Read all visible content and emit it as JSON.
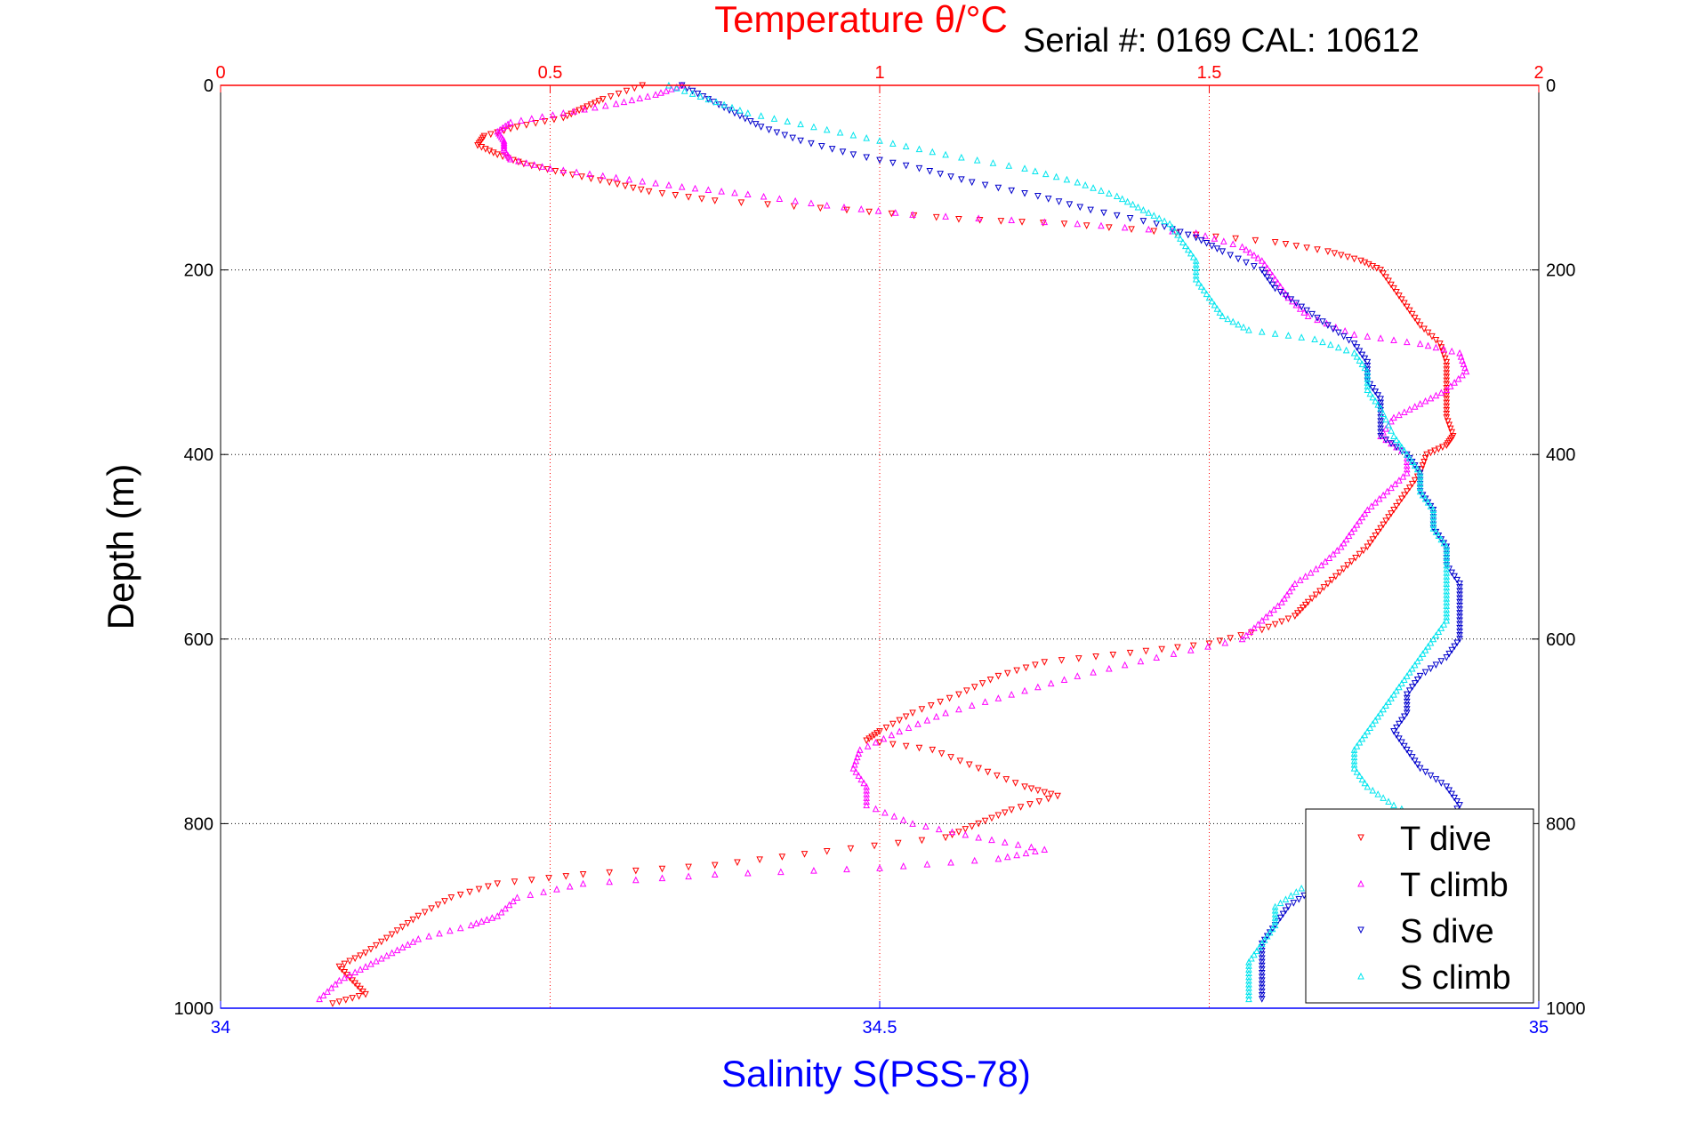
{
  "chart_data": {
    "type": "scatter",
    "title_top": "Temperature θ/°C",
    "title_right": "Serial #: 0169 CAL: 10612",
    "ylabel": "Depth (m)",
    "xlabel_bottom": "Salinity S(PSS-78)",
    "y_axis": {
      "range": [
        0,
        1000
      ],
      "reversed": true,
      "ticks": [
        0,
        200,
        400,
        600,
        800,
        1000
      ],
      "tick_labels": [
        "0",
        "200",
        "400",
        "600",
        "800",
        "1000"
      ]
    },
    "x_temp_axis": {
      "range": [
        0,
        2
      ],
      "ticks": [
        0,
        0.5,
        1,
        1.5,
        2
      ],
      "tick_labels": [
        "0",
        "0.5",
        "1",
        "1.5",
        "2"
      ],
      "position": "top"
    },
    "x_sal_axis": {
      "range": [
        34,
        35
      ],
      "ticks": [
        34,
        34.5,
        35
      ],
      "tick_labels": [
        "34",
        "34.5",
        "35"
      ],
      "position": "bottom"
    },
    "grid": true,
    "legend_position": "bottom-right",
    "series": [
      {
        "name": "T dive",
        "axis": "temperature",
        "marker": "triangle-down",
        "points": [
          [
            0.64,
            0
          ],
          [
            0.58,
            15
          ],
          [
            0.55,
            25
          ],
          [
            0.52,
            35
          ],
          [
            0.45,
            45
          ],
          [
            0.4,
            55
          ],
          [
            0.39,
            65
          ],
          [
            0.42,
            75
          ],
          [
            0.46,
            85
          ],
          [
            0.52,
            95
          ],
          [
            0.59,
            105
          ],
          [
            0.65,
            115
          ],
          [
            0.75,
            125
          ],
          [
            0.95,
            135
          ],
          [
            1.12,
            145
          ],
          [
            1.28,
            150
          ],
          [
            1.45,
            160
          ],
          [
            1.6,
            170
          ],
          [
            1.68,
            180
          ],
          [
            1.73,
            190
          ],
          [
            1.76,
            200
          ],
          [
            1.78,
            220
          ],
          [
            1.8,
            240
          ],
          [
            1.82,
            260
          ],
          [
            1.85,
            280
          ],
          [
            1.86,
            300
          ],
          [
            1.86,
            320
          ],
          [
            1.86,
            340
          ],
          [
            1.86,
            360
          ],
          [
            1.87,
            380
          ],
          [
            1.86,
            390
          ],
          [
            1.83,
            400
          ],
          [
            1.82,
            420
          ],
          [
            1.8,
            440
          ],
          [
            1.78,
            460
          ],
          [
            1.76,
            480
          ],
          [
            1.74,
            500
          ],
          [
            1.71,
            520
          ],
          [
            1.68,
            540
          ],
          [
            1.65,
            560
          ],
          [
            1.63,
            575
          ],
          [
            1.58,
            590
          ],
          [
            1.5,
            605
          ],
          [
            1.38,
            615
          ],
          [
            1.25,
            625
          ],
          [
            1.18,
            640
          ],
          [
            1.12,
            660
          ],
          [
            1.05,
            680
          ],
          [
            1.0,
            700
          ],
          [
            0.98,
            710
          ],
          [
            1.08,
            720
          ],
          [
            1.15,
            740
          ],
          [
            1.22,
            760
          ],
          [
            1.27,
            770
          ],
          [
            1.2,
            785
          ],
          [
            1.15,
            800
          ],
          [
            1.1,
            815
          ],
          [
            0.92,
            830
          ],
          [
            0.75,
            845
          ],
          [
            0.55,
            855
          ],
          [
            0.42,
            865
          ],
          [
            0.35,
            880
          ],
          [
            0.3,
            900
          ],
          [
            0.26,
            920
          ],
          [
            0.22,
            940
          ],
          [
            0.18,
            955
          ],
          [
            0.2,
            970
          ],
          [
            0.22,
            985
          ],
          [
            0.17,
            995
          ]
        ]
      },
      {
        "name": "T climb",
        "axis": "temperature",
        "marker": "triangle-up",
        "points": [
          [
            0.7,
            0
          ],
          [
            0.66,
            10
          ],
          [
            0.6,
            20
          ],
          [
            0.52,
            30
          ],
          [
            0.44,
            40
          ],
          [
            0.42,
            50
          ],
          [
            0.43,
            60
          ],
          [
            0.43,
            70
          ],
          [
            0.44,
            80
          ],
          [
            0.5,
            90
          ],
          [
            0.6,
            100
          ],
          [
            0.7,
            110
          ],
          [
            0.8,
            118
          ],
          [
            0.92,
            130
          ],
          [
            1.05,
            140
          ],
          [
            1.3,
            150
          ],
          [
            1.48,
            160
          ],
          [
            1.55,
            175
          ],
          [
            1.58,
            190
          ],
          [
            1.6,
            210
          ],
          [
            1.62,
            230
          ],
          [
            1.65,
            250
          ],
          [
            1.72,
            270
          ],
          [
            1.82,
            280
          ],
          [
            1.88,
            290
          ],
          [
            1.89,
            310
          ],
          [
            1.86,
            330
          ],
          [
            1.82,
            345
          ],
          [
            1.78,
            360
          ],
          [
            1.76,
            380
          ],
          [
            1.8,
            400
          ],
          [
            1.8,
            420
          ],
          [
            1.77,
            440
          ],
          [
            1.74,
            460
          ],
          [
            1.72,
            480
          ],
          [
            1.7,
            500
          ],
          [
            1.67,
            520
          ],
          [
            1.63,
            540
          ],
          [
            1.61,
            560
          ],
          [
            1.58,
            580
          ],
          [
            1.55,
            600
          ],
          [
            1.42,
            620
          ],
          [
            1.3,
            640
          ],
          [
            1.2,
            660
          ],
          [
            1.1,
            680
          ],
          [
            1.03,
            700
          ],
          [
            0.97,
            720
          ],
          [
            0.96,
            740
          ],
          [
            0.98,
            760
          ],
          [
            0.98,
            780
          ],
          [
            1.05,
            800
          ],
          [
            1.15,
            815
          ],
          [
            1.25,
            828
          ],
          [
            1.18,
            838
          ],
          [
            1.0,
            848
          ],
          [
            0.75,
            855
          ],
          [
            0.55,
            865
          ],
          [
            0.45,
            880
          ],
          [
            0.42,
            900
          ],
          [
            0.38,
            910
          ],
          [
            0.3,
            925
          ],
          [
            0.26,
            940
          ],
          [
            0.22,
            955
          ],
          [
            0.18,
            970
          ],
          [
            0.15,
            990
          ]
        ]
      },
      {
        "name": "S dive",
        "axis": "salinity",
        "marker": "triangle-down",
        "points": [
          [
            34.35,
            0
          ],
          [
            34.37,
            15
          ],
          [
            34.39,
            30
          ],
          [
            34.41,
            45
          ],
          [
            34.44,
            60
          ],
          [
            34.48,
            75
          ],
          [
            34.53,
            90
          ],
          [
            34.57,
            105
          ],
          [
            34.62,
            120
          ],
          [
            34.66,
            135
          ],
          [
            34.71,
            150
          ],
          [
            34.74,
            165
          ],
          [
            34.76,
            180
          ],
          [
            34.79,
            200
          ],
          [
            34.8,
            220
          ],
          [
            34.82,
            240
          ],
          [
            34.84,
            260
          ],
          [
            34.86,
            280
          ],
          [
            34.87,
            300
          ],
          [
            34.87,
            320
          ],
          [
            34.88,
            340
          ],
          [
            34.88,
            360
          ],
          [
            34.88,
            380
          ],
          [
            34.9,
            400
          ],
          [
            34.91,
            420
          ],
          [
            34.91,
            440
          ],
          [
            34.92,
            460
          ],
          [
            34.92,
            480
          ],
          [
            34.93,
            500
          ],
          [
            34.93,
            520
          ],
          [
            34.94,
            540
          ],
          [
            34.94,
            560
          ],
          [
            34.94,
            580
          ],
          [
            34.94,
            600
          ],
          [
            34.93,
            620
          ],
          [
            34.91,
            640
          ],
          [
            34.9,
            660
          ],
          [
            34.9,
            680
          ],
          [
            34.89,
            700
          ],
          [
            34.9,
            720
          ],
          [
            34.91,
            740
          ],
          [
            34.93,
            760
          ],
          [
            34.94,
            780
          ],
          [
            34.93,
            800
          ],
          [
            34.92,
            820
          ],
          [
            34.9,
            835
          ],
          [
            34.86,
            850
          ],
          [
            34.83,
            870
          ],
          [
            34.81,
            890
          ],
          [
            34.8,
            910
          ],
          [
            34.79,
            930
          ],
          [
            34.79,
            950
          ],
          [
            34.79,
            970
          ],
          [
            34.79,
            990
          ]
        ]
      },
      {
        "name": "S climb",
        "axis": "salinity",
        "marker": "triangle-up",
        "points": [
          [
            34.34,
            0
          ],
          [
            34.37,
            15
          ],
          [
            34.4,
            30
          ],
          [
            34.45,
            45
          ],
          [
            34.5,
            60
          ],
          [
            34.55,
            75
          ],
          [
            34.61,
            90
          ],
          [
            34.65,
            105
          ],
          [
            34.68,
            120
          ],
          [
            34.7,
            135
          ],
          [
            34.72,
            150
          ],
          [
            34.73,
            170
          ],
          [
            34.74,
            190
          ],
          [
            34.74,
            210
          ],
          [
            34.75,
            230
          ],
          [
            34.76,
            250
          ],
          [
            34.78,
            265
          ],
          [
            34.83,
            275
          ],
          [
            34.86,
            290
          ],
          [
            34.87,
            310
          ],
          [
            34.87,
            330
          ],
          [
            34.88,
            350
          ],
          [
            34.89,
            380
          ],
          [
            34.9,
            400
          ],
          [
            34.91,
            420
          ],
          [
            34.91,
            440
          ],
          [
            34.92,
            460
          ],
          [
            34.92,
            480
          ],
          [
            34.93,
            500
          ],
          [
            34.93,
            520
          ],
          [
            34.93,
            540
          ],
          [
            34.93,
            560
          ],
          [
            34.93,
            580
          ],
          [
            34.92,
            600
          ],
          [
            34.91,
            620
          ],
          [
            34.9,
            640
          ],
          [
            34.89,
            660
          ],
          [
            34.88,
            680
          ],
          [
            34.87,
            700
          ],
          [
            34.86,
            720
          ],
          [
            34.86,
            740
          ],
          [
            34.87,
            760
          ],
          [
            34.89,
            780
          ],
          [
            34.92,
            800
          ],
          [
            34.93,
            820
          ],
          [
            34.92,
            840
          ],
          [
            34.86,
            855
          ],
          [
            34.82,
            870
          ],
          [
            34.8,
            890
          ],
          [
            34.8,
            910
          ],
          [
            34.79,
            930
          ],
          [
            34.78,
            950
          ],
          [
            34.78,
            970
          ],
          [
            34.78,
            990
          ]
        ]
      }
    ],
    "colors": {
      "t_dive": "#ff0000",
      "t_climb": "#ff00ff",
      "s_dive": "#0000cc",
      "s_climb": "#00e5ee",
      "temp_axis": "#ff0000",
      "sal_axis": "#0000ff",
      "text": "#000000"
    }
  }
}
